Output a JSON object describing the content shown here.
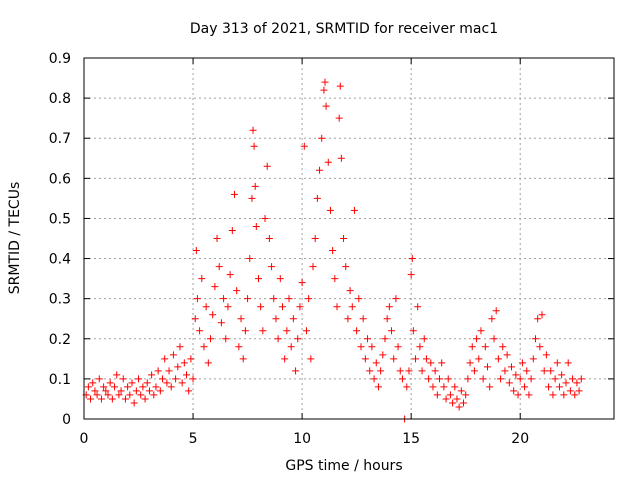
{
  "chart_data": {
    "type": "scatter",
    "title": "Day 313 of 2021, SRMTID for receiver mac1",
    "xlabel": "GPS time / hours",
    "ylabel": "SRMTID / TECUs",
    "xlim": [
      0,
      24.3
    ],
    "ylim": [
      0,
      0.9
    ],
    "xticks": [
      0,
      5,
      10,
      15,
      20
    ],
    "xtick_labels": [
      "0",
      "5",
      "10",
      "15",
      "20"
    ],
    "yticks": [
      0,
      0.1,
      0.2,
      0.3,
      0.4,
      0.5,
      0.6,
      0.7,
      0.8,
      0.9
    ],
    "ytick_labels": [
      "0",
      "0.1",
      "0.2",
      "0.3",
      "0.4",
      "0.5",
      "0.6",
      "0.7",
      "0.8",
      "0.9"
    ],
    "grid": true,
    "marker": "+",
    "color": "#ff0000",
    "series": [
      {
        "name": "SRMTID",
        "points": [
          [
            0.1,
            0.06
          ],
          [
            0.2,
            0.08
          ],
          [
            0.3,
            0.05
          ],
          [
            0.4,
            0.09
          ],
          [
            0.5,
            0.07
          ],
          [
            0.6,
            0.06
          ],
          [
            0.7,
            0.1
          ],
          [
            0.8,
            0.05
          ],
          [
            0.9,
            0.08
          ],
          [
            1.0,
            0.07
          ],
          [
            1.1,
            0.06
          ],
          [
            1.2,
            0.09
          ],
          [
            1.3,
            0.05
          ],
          [
            1.4,
            0.08
          ],
          [
            1.5,
            0.11
          ],
          [
            1.6,
            0.06
          ],
          [
            1.7,
            0.07
          ],
          [
            1.8,
            0.1
          ],
          [
            1.9,
            0.05
          ],
          [
            2.0,
            0.08
          ],
          [
            2.1,
            0.06
          ],
          [
            2.2,
            0.09
          ],
          [
            2.3,
            0.04
          ],
          [
            2.4,
            0.07
          ],
          [
            2.5,
            0.1
          ],
          [
            2.6,
            0.06
          ],
          [
            2.7,
            0.08
          ],
          [
            2.8,
            0.05
          ],
          [
            2.9,
            0.09
          ],
          [
            3.0,
            0.07
          ],
          [
            3.1,
            0.11
          ],
          [
            3.2,
            0.06
          ],
          [
            3.3,
            0.08
          ],
          [
            3.4,
            0.12
          ],
          [
            3.5,
            0.07
          ],
          [
            3.6,
            0.1
          ],
          [
            3.7,
            0.15
          ],
          [
            3.8,
            0.09
          ],
          [
            3.9,
            0.12
          ],
          [
            4.0,
            0.08
          ],
          [
            4.1,
            0.16
          ],
          [
            4.2,
            0.1
          ],
          [
            4.3,
            0.13
          ],
          [
            4.4,
            0.18
          ],
          [
            4.5,
            0.09
          ],
          [
            4.6,
            0.14
          ],
          [
            4.7,
            0.11
          ],
          [
            4.8,
            0.07
          ],
          [
            4.9,
            0.15
          ],
          [
            5.0,
            0.1
          ],
          [
            5.1,
            0.25
          ],
          [
            5.15,
            0.42
          ],
          [
            5.2,
            0.3
          ],
          [
            5.3,
            0.22
          ],
          [
            5.4,
            0.35
          ],
          [
            5.5,
            0.18
          ],
          [
            5.6,
            0.28
          ],
          [
            5.7,
            0.14
          ],
          [
            5.8,
            0.2
          ],
          [
            5.9,
            0.26
          ],
          [
            6.0,
            0.33
          ],
          [
            6.1,
            0.45
          ],
          [
            6.2,
            0.38
          ],
          [
            6.3,
            0.24
          ],
          [
            6.4,
            0.3
          ],
          [
            6.5,
            0.2
          ],
          [
            6.6,
            0.28
          ],
          [
            6.7,
            0.36
          ],
          [
            6.8,
            0.47
          ],
          [
            6.9,
            0.56
          ],
          [
            7.0,
            0.32
          ],
          [
            7.1,
            0.18
          ],
          [
            7.2,
            0.25
          ],
          [
            7.3,
            0.15
          ],
          [
            7.4,
            0.22
          ],
          [
            7.5,
            0.3
          ],
          [
            7.6,
            0.4
          ],
          [
            7.7,
            0.55
          ],
          [
            7.75,
            0.72
          ],
          [
            7.8,
            0.68
          ],
          [
            7.85,
            0.58
          ],
          [
            7.9,
            0.48
          ],
          [
            8.0,
            0.35
          ],
          [
            8.1,
            0.28
          ],
          [
            8.2,
            0.22
          ],
          [
            8.3,
            0.5
          ],
          [
            8.4,
            0.63
          ],
          [
            8.5,
            0.45
          ],
          [
            8.6,
            0.38
          ],
          [
            8.7,
            0.3
          ],
          [
            8.8,
            0.25
          ],
          [
            8.9,
            0.2
          ],
          [
            9.0,
            0.35
          ],
          [
            9.1,
            0.28
          ],
          [
            9.2,
            0.15
          ],
          [
            9.3,
            0.22
          ],
          [
            9.4,
            0.3
          ],
          [
            9.5,
            0.18
          ],
          [
            9.6,
            0.25
          ],
          [
            9.7,
            0.12
          ],
          [
            9.8,
            0.2
          ],
          [
            9.9,
            0.28
          ],
          [
            10.0,
            0.34
          ],
          [
            10.1,
            0.68
          ],
          [
            10.2,
            0.22
          ],
          [
            10.3,
            0.3
          ],
          [
            10.4,
            0.15
          ],
          [
            10.5,
            0.38
          ],
          [
            10.6,
            0.45
          ],
          [
            10.7,
            0.55
          ],
          [
            10.8,
            0.62
          ],
          [
            10.9,
            0.7
          ],
          [
            11.0,
            0.82
          ],
          [
            11.05,
            0.84
          ],
          [
            11.1,
            0.78
          ],
          [
            11.2,
            0.64
          ],
          [
            11.3,
            0.52
          ],
          [
            11.4,
            0.42
          ],
          [
            11.5,
            0.35
          ],
          [
            11.6,
            0.28
          ],
          [
            11.7,
            0.75
          ],
          [
            11.75,
            0.83
          ],
          [
            11.8,
            0.65
          ],
          [
            11.9,
            0.45
          ],
          [
            12.0,
            0.38
          ],
          [
            12.1,
            0.25
          ],
          [
            12.2,
            0.32
          ],
          [
            12.3,
            0.28
          ],
          [
            12.4,
            0.52
          ],
          [
            12.5,
            0.22
          ],
          [
            12.6,
            0.3
          ],
          [
            12.7,
            0.18
          ],
          [
            12.8,
            0.25
          ],
          [
            12.9,
            0.15
          ],
          [
            13.0,
            0.2
          ],
          [
            13.1,
            0.12
          ],
          [
            13.2,
            0.18
          ],
          [
            13.3,
            0.1
          ],
          [
            13.4,
            0.14
          ],
          [
            13.5,
            0.08
          ],
          [
            13.6,
            0.12
          ],
          [
            13.7,
            0.16
          ],
          [
            13.8,
            0.2
          ],
          [
            13.9,
            0.25
          ],
          [
            14.0,
            0.28
          ],
          [
            14.1,
            0.22
          ],
          [
            14.2,
            0.15
          ],
          [
            14.3,
            0.3
          ],
          [
            14.4,
            0.18
          ],
          [
            14.5,
            0.12
          ],
          [
            14.6,
            0.1
          ],
          [
            14.7,
            0.0
          ],
          [
            14.8,
            0.08
          ],
          [
            14.9,
            0.12
          ],
          [
            15.0,
            0.36
          ],
          [
            15.05,
            0.4
          ],
          [
            15.1,
            0.22
          ],
          [
            15.2,
            0.15
          ],
          [
            15.3,
            0.28
          ],
          [
            15.4,
            0.18
          ],
          [
            15.5,
            0.12
          ],
          [
            15.6,
            0.2
          ],
          [
            15.7,
            0.15
          ],
          [
            15.8,
            0.1
          ],
          [
            15.9,
            0.14
          ],
          [
            16.0,
            0.08
          ],
          [
            16.1,
            0.12
          ],
          [
            16.2,
            0.06
          ],
          [
            16.3,
            0.1
          ],
          [
            16.4,
            0.14
          ],
          [
            16.5,
            0.08
          ],
          [
            16.6,
            0.05
          ],
          [
            16.7,
            0.1
          ],
          [
            16.8,
            0.06
          ],
          [
            16.9,
            0.04
          ],
          [
            17.0,
            0.08
          ],
          [
            17.1,
            0.05
          ],
          [
            17.2,
            0.03
          ],
          [
            17.3,
            0.07
          ],
          [
            17.4,
            0.04
          ],
          [
            17.5,
            0.06
          ],
          [
            17.6,
            0.1
          ],
          [
            17.7,
            0.14
          ],
          [
            17.8,
            0.18
          ],
          [
            17.9,
            0.12
          ],
          [
            18.0,
            0.2
          ],
          [
            18.1,
            0.15
          ],
          [
            18.2,
            0.22
          ],
          [
            18.3,
            0.1
          ],
          [
            18.4,
            0.18
          ],
          [
            18.5,
            0.13
          ],
          [
            18.6,
            0.08
          ],
          [
            18.7,
            0.25
          ],
          [
            18.8,
            0.2
          ],
          [
            18.9,
            0.27
          ],
          [
            19.0,
            0.15
          ],
          [
            19.1,
            0.1
          ],
          [
            19.2,
            0.18
          ],
          [
            19.3,
            0.12
          ],
          [
            19.4,
            0.16
          ],
          [
            19.5,
            0.09
          ],
          [
            19.6,
            0.13
          ],
          [
            19.7,
            0.07
          ],
          [
            19.8,
            0.11
          ],
          [
            19.9,
            0.06
          ],
          [
            20.0,
            0.1
          ],
          [
            20.1,
            0.14
          ],
          [
            20.2,
            0.08
          ],
          [
            20.3,
            0.12
          ],
          [
            20.4,
            0.06
          ],
          [
            20.5,
            0.1
          ],
          [
            20.6,
            0.15
          ],
          [
            20.7,
            0.2
          ],
          [
            20.8,
            0.25
          ],
          [
            20.9,
            0.18
          ],
          [
            21.0,
            0.26
          ],
          [
            21.1,
            0.12
          ],
          [
            21.2,
            0.16
          ],
          [
            21.3,
            0.08
          ],
          [
            21.4,
            0.12
          ],
          [
            21.5,
            0.06
          ],
          [
            21.6,
            0.1
          ],
          [
            21.7,
            0.14
          ],
          [
            21.8,
            0.08
          ],
          [
            21.9,
            0.11
          ],
          [
            22.0,
            0.06
          ],
          [
            22.1,
            0.09
          ],
          [
            22.2,
            0.14
          ],
          [
            22.3,
            0.07
          ],
          [
            22.4,
            0.1
          ],
          [
            22.5,
            0.06
          ],
          [
            22.6,
            0.09
          ],
          [
            22.7,
            0.07
          ],
          [
            22.8,
            0.1
          ]
        ]
      }
    ]
  }
}
